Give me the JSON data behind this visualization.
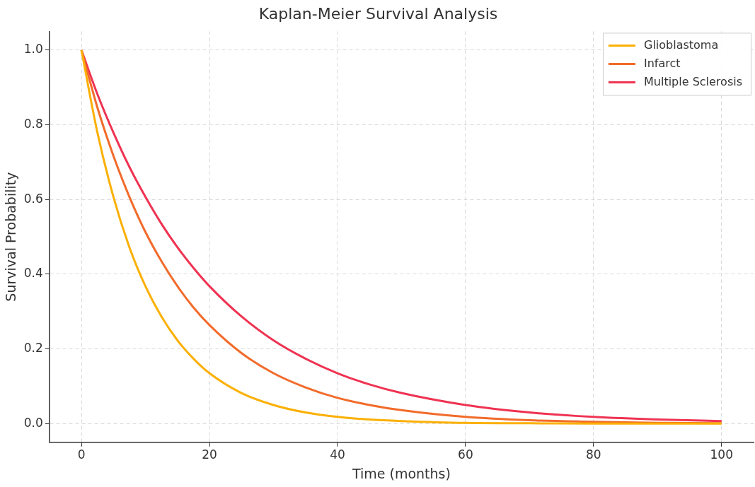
{
  "chart_data": {
    "type": "line",
    "title": "Kaplan-Meier Survival Analysis",
    "xlabel": "Time (months)",
    "ylabel": "Survival Probability",
    "x": [
      0,
      2.5,
      5,
      7.5,
      10,
      12.5,
      15,
      17.5,
      20,
      25,
      30,
      35,
      40,
      45,
      50,
      60,
      70,
      80,
      90,
      100
    ],
    "series": [
      {
        "name": "Glioblastoma",
        "color": "#fbb004",
        "values": [
          1,
          0.779,
          0.607,
          0.472,
          0.368,
          0.287,
          0.223,
          0.174,
          0.135,
          0.082,
          0.05,
          0.03,
          0.018,
          0.011,
          0.007,
          0.002,
          0.001,
          0,
          0,
          0
        ]
      },
      {
        "name": "Infarct",
        "color": "#f26b2a",
        "values": [
          1,
          0.846,
          0.717,
          0.607,
          0.513,
          0.435,
          0.368,
          0.311,
          0.264,
          0.189,
          0.135,
          0.097,
          0.069,
          0.05,
          0.036,
          0.018,
          0.009,
          0.005,
          0.002,
          0.001
        ]
      },
      {
        "name": "Multiple Sclerosis",
        "color": "#ef3352",
        "values": [
          1,
          0.882,
          0.779,
          0.687,
          0.607,
          0.535,
          0.472,
          0.417,
          0.368,
          0.287,
          0.223,
          0.174,
          0.135,
          0.105,
          0.082,
          0.05,
          0.03,
          0.018,
          0.011,
          0.007
        ]
      }
    ],
    "xlim": [
      -5,
      105
    ],
    "xticks": [
      0,
      20,
      40,
      60,
      80,
      100
    ],
    "ylim": [
      -0.05,
      1.05
    ],
    "yticks": [
      {
        "value": 0,
        "label": "0.0"
      },
      0.2,
      0.4,
      0.6,
      0.8,
      {
        "value": 1,
        "label": "1.0"
      }
    ],
    "grid": true,
    "legend": "top right",
    "marker": "none",
    "line_style": "solid"
  }
}
